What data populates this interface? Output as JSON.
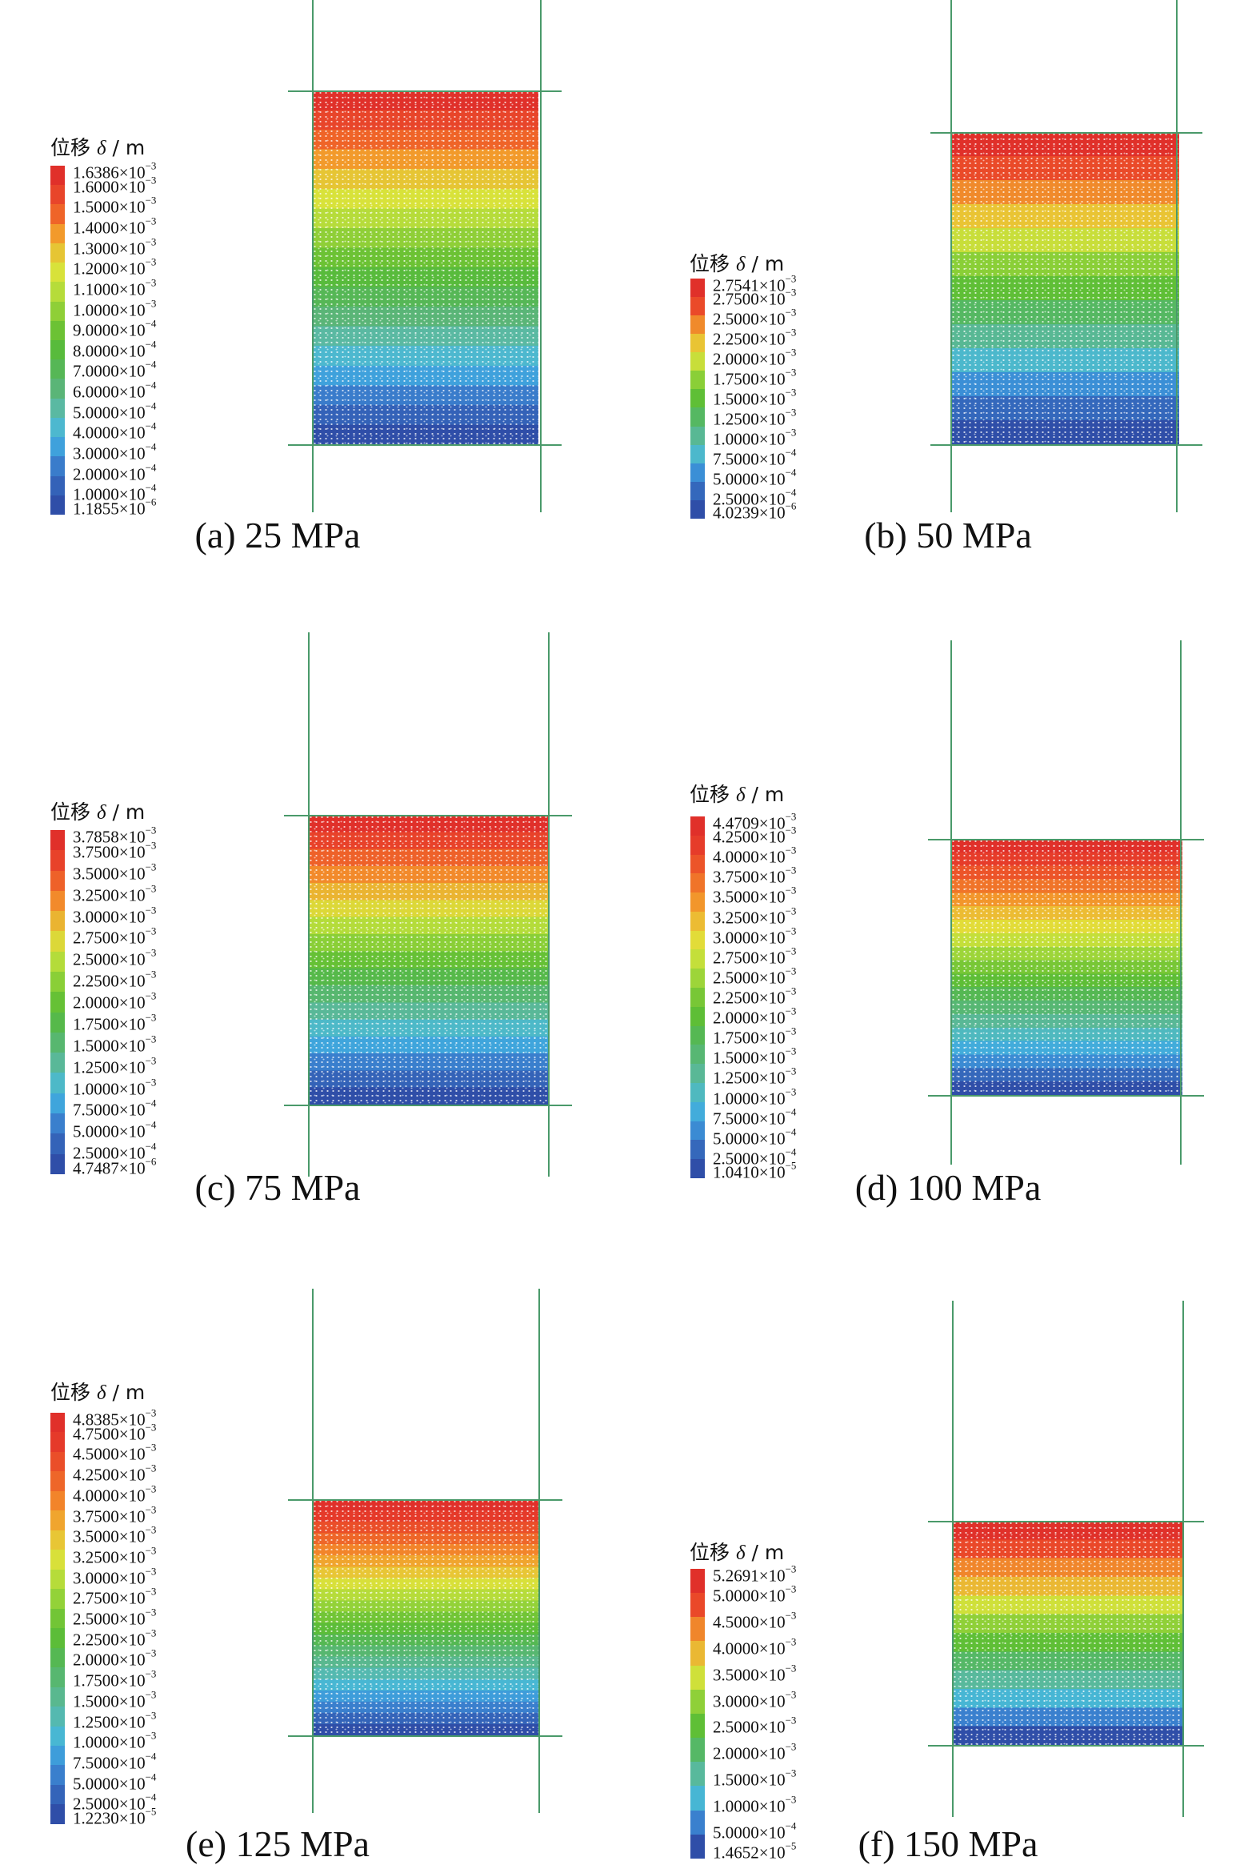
{
  "legend_title_prefix": "位移",
  "legend_title_symbol": "δ",
  "legend_title_unit": "/ m",
  "panels": [
    {
      "caption": "(a) 25 MPa",
      "legend": [
        {
          "m": "1.6386",
          "e": "-3",
          "color": "#e0302a"
        },
        {
          "m": "1.6000",
          "e": "-3",
          "color": "#e8452a"
        },
        {
          "m": "1.5000",
          "e": "-3",
          "color": "#ef6428"
        },
        {
          "m": "1.4000",
          "e": "-3",
          "color": "#f29a2b"
        },
        {
          "m": "1.3000",
          "e": "-3",
          "color": "#e6c534"
        },
        {
          "m": "1.2000",
          "e": "-3",
          "color": "#d8e23a"
        },
        {
          "m": "1.1000",
          "e": "-3",
          "color": "#b6dc3a"
        },
        {
          "m": "1.0000",
          "e": "-3",
          "color": "#8fcf37"
        },
        {
          "m": "9.0000",
          "e": "-4",
          "color": "#6cc234"
        },
        {
          "m": "8.0000",
          "e": "-4",
          "color": "#58bb3c"
        },
        {
          "m": "7.0000",
          "e": "-4",
          "color": "#56b756"
        },
        {
          "m": "6.0000",
          "e": "-4",
          "color": "#5ab577"
        },
        {
          "m": "5.0000",
          "e": "-4",
          "color": "#5ab9a2"
        },
        {
          "m": "4.0000",
          "e": "-4",
          "color": "#4db8cf"
        },
        {
          "m": "3.0000",
          "e": "-4",
          "color": "#3fa1dc"
        },
        {
          "m": "2.0000",
          "e": "-4",
          "color": "#3a7ccb"
        },
        {
          "m": "1.0000",
          "e": "-4",
          "color": "#3462b8"
        },
        {
          "m": "1.1855",
          "e": "-6",
          "color": "#2f4ea8"
        }
      ]
    },
    {
      "caption": "(b) 50 MPa",
      "legend": [
        {
          "m": "2.7541",
          "e": "-3",
          "color": "#e0302a"
        },
        {
          "m": "2.7500",
          "e": "-3",
          "color": "#ea4a29"
        },
        {
          "m": "2.5000",
          "e": "-3",
          "color": "#f08a2b"
        },
        {
          "m": "2.2500",
          "e": "-3",
          "color": "#e9c434"
        },
        {
          "m": "2.0000",
          "e": "-3",
          "color": "#c8de3a"
        },
        {
          "m": "1.7500",
          "e": "-3",
          "color": "#8acf37"
        },
        {
          "m": "1.5000",
          "e": "-3",
          "color": "#5fbf36"
        },
        {
          "m": "1.2500",
          "e": "-3",
          "color": "#55b862"
        },
        {
          "m": "1.0000",
          "e": "-3",
          "color": "#58b894"
        },
        {
          "m": "7.5000",
          "e": "-4",
          "color": "#4cb8cc"
        },
        {
          "m": "5.0000",
          "e": "-4",
          "color": "#3b8fd6"
        },
        {
          "m": "2.5000",
          "e": "-4",
          "color": "#3468bc"
        },
        {
          "m": "4.0239",
          "e": "-6",
          "color": "#2f4ea8"
        }
      ]
    },
    {
      "caption": "(c) 75 MPa",
      "legend": [
        {
          "m": "3.7858",
          "e": "-3",
          "color": "#e0302a"
        },
        {
          "m": "3.7500",
          "e": "-3",
          "color": "#e8422a"
        },
        {
          "m": "3.5000",
          "e": "-3",
          "color": "#ee6129"
        },
        {
          "m": "3.2500",
          "e": "-3",
          "color": "#f28a2b"
        },
        {
          "m": "3.0000",
          "e": "-3",
          "color": "#eab431"
        },
        {
          "m": "2.7500",
          "e": "-3",
          "color": "#dcd838"
        },
        {
          "m": "2.5000",
          "e": "-3",
          "color": "#b4dc3a"
        },
        {
          "m": "2.2500",
          "e": "-3",
          "color": "#8acf37"
        },
        {
          "m": "2.0000",
          "e": "-3",
          "color": "#66c135"
        },
        {
          "m": "1.7500",
          "e": "-3",
          "color": "#56b94a"
        },
        {
          "m": "1.5000",
          "e": "-3",
          "color": "#57b76f"
        },
        {
          "m": "1.2500",
          "e": "-3",
          "color": "#59b898"
        },
        {
          "m": "1.0000",
          "e": "-3",
          "color": "#4db9c8"
        },
        {
          "m": "7.5000",
          "e": "-4",
          "color": "#3fa5dc"
        },
        {
          "m": "5.0000",
          "e": "-4",
          "color": "#3a7fcd"
        },
        {
          "m": "2.5000",
          "e": "-4",
          "color": "#3463b8"
        },
        {
          "m": "4.7487",
          "e": "-6",
          "color": "#2f4ea8"
        }
      ]
    },
    {
      "caption": "(d) 100 MPa",
      "legend": [
        {
          "m": "4.4709",
          "e": "-3",
          "color": "#e0302a"
        },
        {
          "m": "4.2500",
          "e": "-3",
          "color": "#e63c2a"
        },
        {
          "m": "4.0000",
          "e": "-3",
          "color": "#ec5429"
        },
        {
          "m": "3.7500",
          "e": "-3",
          "color": "#f07429"
        },
        {
          "m": "3.5000",
          "e": "-3",
          "color": "#f2962b"
        },
        {
          "m": "3.2500",
          "e": "-3",
          "color": "#ecbc33"
        },
        {
          "m": "3.0000",
          "e": "-3",
          "color": "#e2dc38"
        },
        {
          "m": "2.7500",
          "e": "-3",
          "color": "#c4df3a"
        },
        {
          "m": "2.5000",
          "e": "-3",
          "color": "#9dd539"
        },
        {
          "m": "2.2500",
          "e": "-3",
          "color": "#78c736"
        },
        {
          "m": "2.0000",
          "e": "-3",
          "color": "#5ebe36"
        },
        {
          "m": "1.7500",
          "e": "-3",
          "color": "#55b853"
        },
        {
          "m": "1.5000",
          "e": "-3",
          "color": "#57b773"
        },
        {
          "m": "1.2500",
          "e": "-3",
          "color": "#59b896"
        },
        {
          "m": "1.0000",
          "e": "-3",
          "color": "#4fb9bf"
        },
        {
          "m": "7.5000",
          "e": "-4",
          "color": "#42acdb"
        },
        {
          "m": "5.0000",
          "e": "-4",
          "color": "#3b8bd3"
        },
        {
          "m": "2.5000",
          "e": "-4",
          "color": "#3568bb"
        },
        {
          "m": "1.0410",
          "e": "-5",
          "color": "#2f4ea8"
        }
      ]
    },
    {
      "caption": "(e) 125 MPa",
      "legend": [
        {
          "m": "4.8385",
          "e": "-3",
          "color": "#e0302a"
        },
        {
          "m": "4.7500",
          "e": "-3",
          "color": "#e53a2a"
        },
        {
          "m": "4.5000",
          "e": "-3",
          "color": "#ea4e29"
        },
        {
          "m": "4.2500",
          "e": "-3",
          "color": "#ee6629"
        },
        {
          "m": "4.0000",
          "e": "-3",
          "color": "#f2842a"
        },
        {
          "m": "3.7500",
          "e": "-3",
          "color": "#f0a52e"
        },
        {
          "m": "3.5000",
          "e": "-3",
          "color": "#e8c635"
        },
        {
          "m": "3.2500",
          "e": "-3",
          "color": "#d8e03a"
        },
        {
          "m": "3.0000",
          "e": "-3",
          "color": "#b6dc3a"
        },
        {
          "m": "2.7500",
          "e": "-3",
          "color": "#93d238"
        },
        {
          "m": "2.5000",
          "e": "-3",
          "color": "#72c536"
        },
        {
          "m": "2.2500",
          "e": "-3",
          "color": "#5cbd38"
        },
        {
          "m": "2.0000",
          "e": "-3",
          "color": "#55b853"
        },
        {
          "m": "1.7500",
          "e": "-3",
          "color": "#57b770"
        },
        {
          "m": "1.5000",
          "e": "-3",
          "color": "#59b88f"
        },
        {
          "m": "1.2500",
          "e": "-3",
          "color": "#54b9b0"
        },
        {
          "m": "1.0000",
          "e": "-3",
          "color": "#48b7d3"
        },
        {
          "m": "7.5000",
          "e": "-4",
          "color": "#3e9dda"
        },
        {
          "m": "5.0000",
          "e": "-4",
          "color": "#3a7fcd"
        },
        {
          "m": "2.5000",
          "e": "-4",
          "color": "#3464b9"
        },
        {
          "m": "1.2230",
          "e": "-5",
          "color": "#2f4ea8"
        }
      ]
    },
    {
      "caption": "(f) 150 MPa",
      "legend": [
        {
          "m": "5.2691",
          "e": "-3",
          "color": "#e0302a"
        },
        {
          "m": "5.0000",
          "e": "-3",
          "color": "#ea4829"
        },
        {
          "m": "4.5000",
          "e": "-3",
          "color": "#f0862b"
        },
        {
          "m": "4.0000",
          "e": "-3",
          "color": "#eab833"
        },
        {
          "m": "3.5000",
          "e": "-3",
          "color": "#cfe03a"
        },
        {
          "m": "3.0000",
          "e": "-3",
          "color": "#8fd038"
        },
        {
          "m": "2.5000",
          "e": "-3",
          "color": "#5fbf36"
        },
        {
          "m": "2.0000",
          "e": "-3",
          "color": "#55b866"
        },
        {
          "m": "1.5000",
          "e": "-3",
          "color": "#58b99c"
        },
        {
          "m": "1.0000",
          "e": "-3",
          "color": "#47b6d4"
        },
        {
          "m": "5.0000",
          "e": "-4",
          "color": "#3a80ce"
        },
        {
          "m": "1.4652",
          "e": "-5",
          "color": "#2f4ea8"
        }
      ]
    }
  ]
}
